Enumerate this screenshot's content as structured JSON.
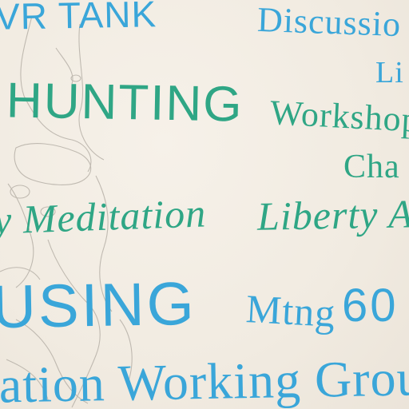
{
  "photo": {
    "subject": "whiteboard",
    "colors": {
      "background": "#f3ede3",
      "blue_marker": "#3aa6d9",
      "green_marker": "#2fa685",
      "pencil": "#b7b1a8"
    },
    "words": [
      {
        "text": "VR TANK",
        "color": "blue"
      },
      {
        "text": "Discussio",
        "color": "blue"
      },
      {
        "text": "Li",
        "color": "blue"
      },
      {
        "text": "HUNTING",
        "color": "green"
      },
      {
        "text": "Workshop",
        "color": "green"
      },
      {
        "text": "Cha",
        "color": "green"
      },
      {
        "text": "y Meditation",
        "color": "green"
      },
      {
        "text": "Liberty A",
        "color": "green"
      },
      {
        "text": "USING",
        "color": "blue"
      },
      {
        "text": "Mtng",
        "color": "blue"
      },
      {
        "text": "60",
        "color": "blue"
      },
      {
        "text": "tation Working Grou",
        "color": "blue"
      }
    ]
  }
}
